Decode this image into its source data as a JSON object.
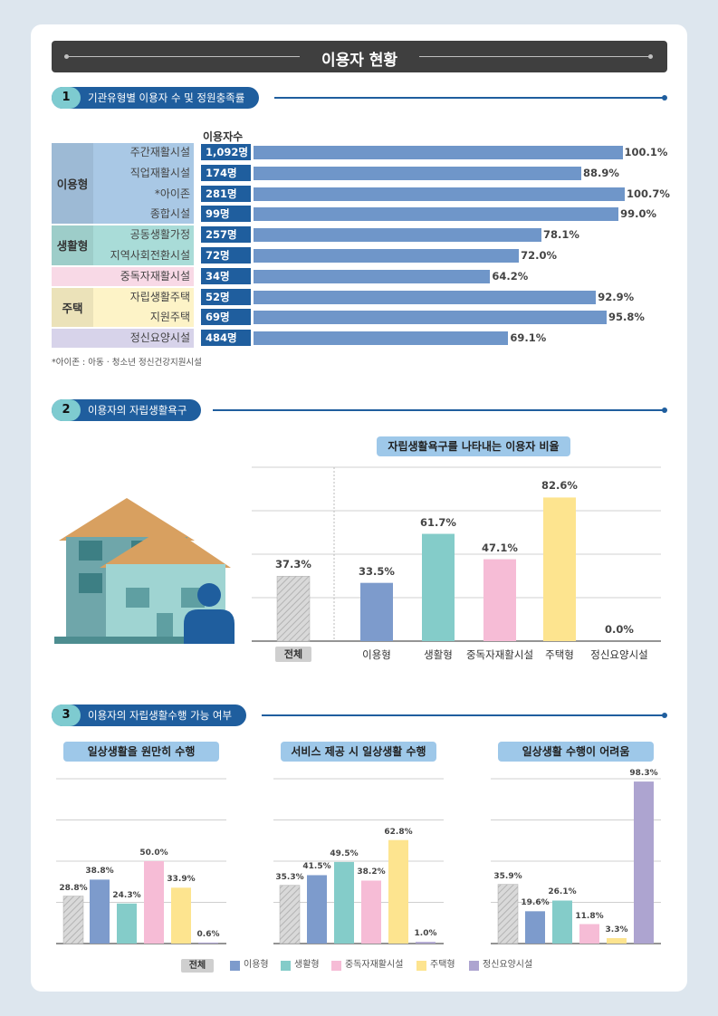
{
  "page_title": "이용자 현황",
  "section1": {
    "number": "1",
    "title": "기관유형별 이용자 수 및 정원충족률",
    "count_header": "이용자수",
    "footnote": "*아이존 : 아동 · 청소년 정신건강지원시설",
    "groups": [
      {
        "label": "이용형",
        "color": "#a9c8e5"
      },
      {
        "label": "생활형",
        "color": "#a9dcd8"
      },
      {
        "label": "",
        "color": "#f8d9e6"
      },
      {
        "label": "주택",
        "color": "#fdf3c7"
      },
      {
        "label": "",
        "color": "#d7d3ea"
      }
    ]
  },
  "section2": {
    "number": "2",
    "title": "이용자의 자립생활욕구",
    "chart_title": "자립생활욕구를 나타내는 이용자 비율"
  },
  "section3": {
    "number": "3",
    "title": "이용자의 자립생활수행 가능 여부"
  },
  "legend": [
    "전체",
    "이용형",
    "생활형",
    "중독자재활시설",
    "주택형",
    "정신요양시설"
  ],
  "colors": {
    "total": "#cfcfcf",
    "use": "#7d9bcc",
    "living": "#84ccc9",
    "addiction": "#f6bcd6",
    "housing": "#fde48f",
    "nursing": "#ada4d0",
    "accent": "#1f5e9e"
  },
  "chart_data": [
    {
      "type": "bar",
      "orientation": "horizontal",
      "categories": [
        "주간재활시설",
        "직업재활시설",
        "*아이존",
        "종합시설",
        "공동생활가정",
        "지역사회전환시설",
        "중독자재활시설",
        "자립생활주택",
        "지원주택",
        "정신요양시설"
      ],
      "counts": [
        "1,092명",
        "174명",
        "281명",
        "99명",
        "257명",
        "72명",
        "34명",
        "52명",
        "69명",
        "484명"
      ],
      "values": [
        100.1,
        88.9,
        100.7,
        99.0,
        78.1,
        72.0,
        64.2,
        92.9,
        95.8,
        69.1
      ],
      "value_labels": [
        "100.1%",
        "88.9%",
        "100.7%",
        "99.0%",
        "78.1%",
        "72.0%",
        "64.2%",
        "92.9%",
        "95.8%",
        "69.1%"
      ]
    },
    {
      "type": "bar",
      "title": "자립생활욕구를 나타내는 이용자 비율",
      "categories": [
        "전체",
        "이용형",
        "생활형",
        "중독자재활시설",
        "주택형",
        "정신요양시설"
      ],
      "values": [
        37.3,
        33.5,
        61.7,
        47.1,
        82.6,
        0.0
      ],
      "value_labels": [
        "37.3%",
        "33.5%",
        "61.7%",
        "47.1%",
        "82.6%",
        "0.0%"
      ],
      "ylim": [
        0,
        100
      ]
    },
    {
      "type": "bar",
      "title": "일상생활을 원만히 수행",
      "categories": [
        "전체",
        "이용형",
        "생활형",
        "중독자재활시설",
        "주택형",
        "정신요양시설"
      ],
      "values": [
        28.8,
        38.8,
        24.3,
        50.0,
        33.9,
        0.6
      ],
      "value_labels": [
        "28.8%",
        "38.8%",
        "24.3%",
        "50.0%",
        "33.9%",
        "0.6%"
      ],
      "ylim": [
        0,
        100
      ]
    },
    {
      "type": "bar",
      "title": "서비스 제공 시 일상생활 수행",
      "categories": [
        "전체",
        "이용형",
        "생활형",
        "중독자재활시설",
        "주택형",
        "정신요양시설"
      ],
      "values": [
        35.3,
        41.5,
        49.5,
        38.2,
        62.8,
        1.0
      ],
      "value_labels": [
        "35.3%",
        "41.5%",
        "49.5%",
        "38.2%",
        "62.8%",
        "1.0%"
      ],
      "ylim": [
        0,
        100
      ]
    },
    {
      "type": "bar",
      "title": "일상생활 수행이 어려움",
      "categories": [
        "전체",
        "이용형",
        "생활형",
        "중독자재활시설",
        "주택형",
        "정신요양시설"
      ],
      "values": [
        35.9,
        19.6,
        26.1,
        11.8,
        3.3,
        98.3
      ],
      "value_labels": [
        "35.9%",
        "19.6%",
        "26.1%",
        "11.8%",
        "3.3%",
        "98.3%"
      ],
      "ylim": [
        0,
        100
      ]
    }
  ]
}
